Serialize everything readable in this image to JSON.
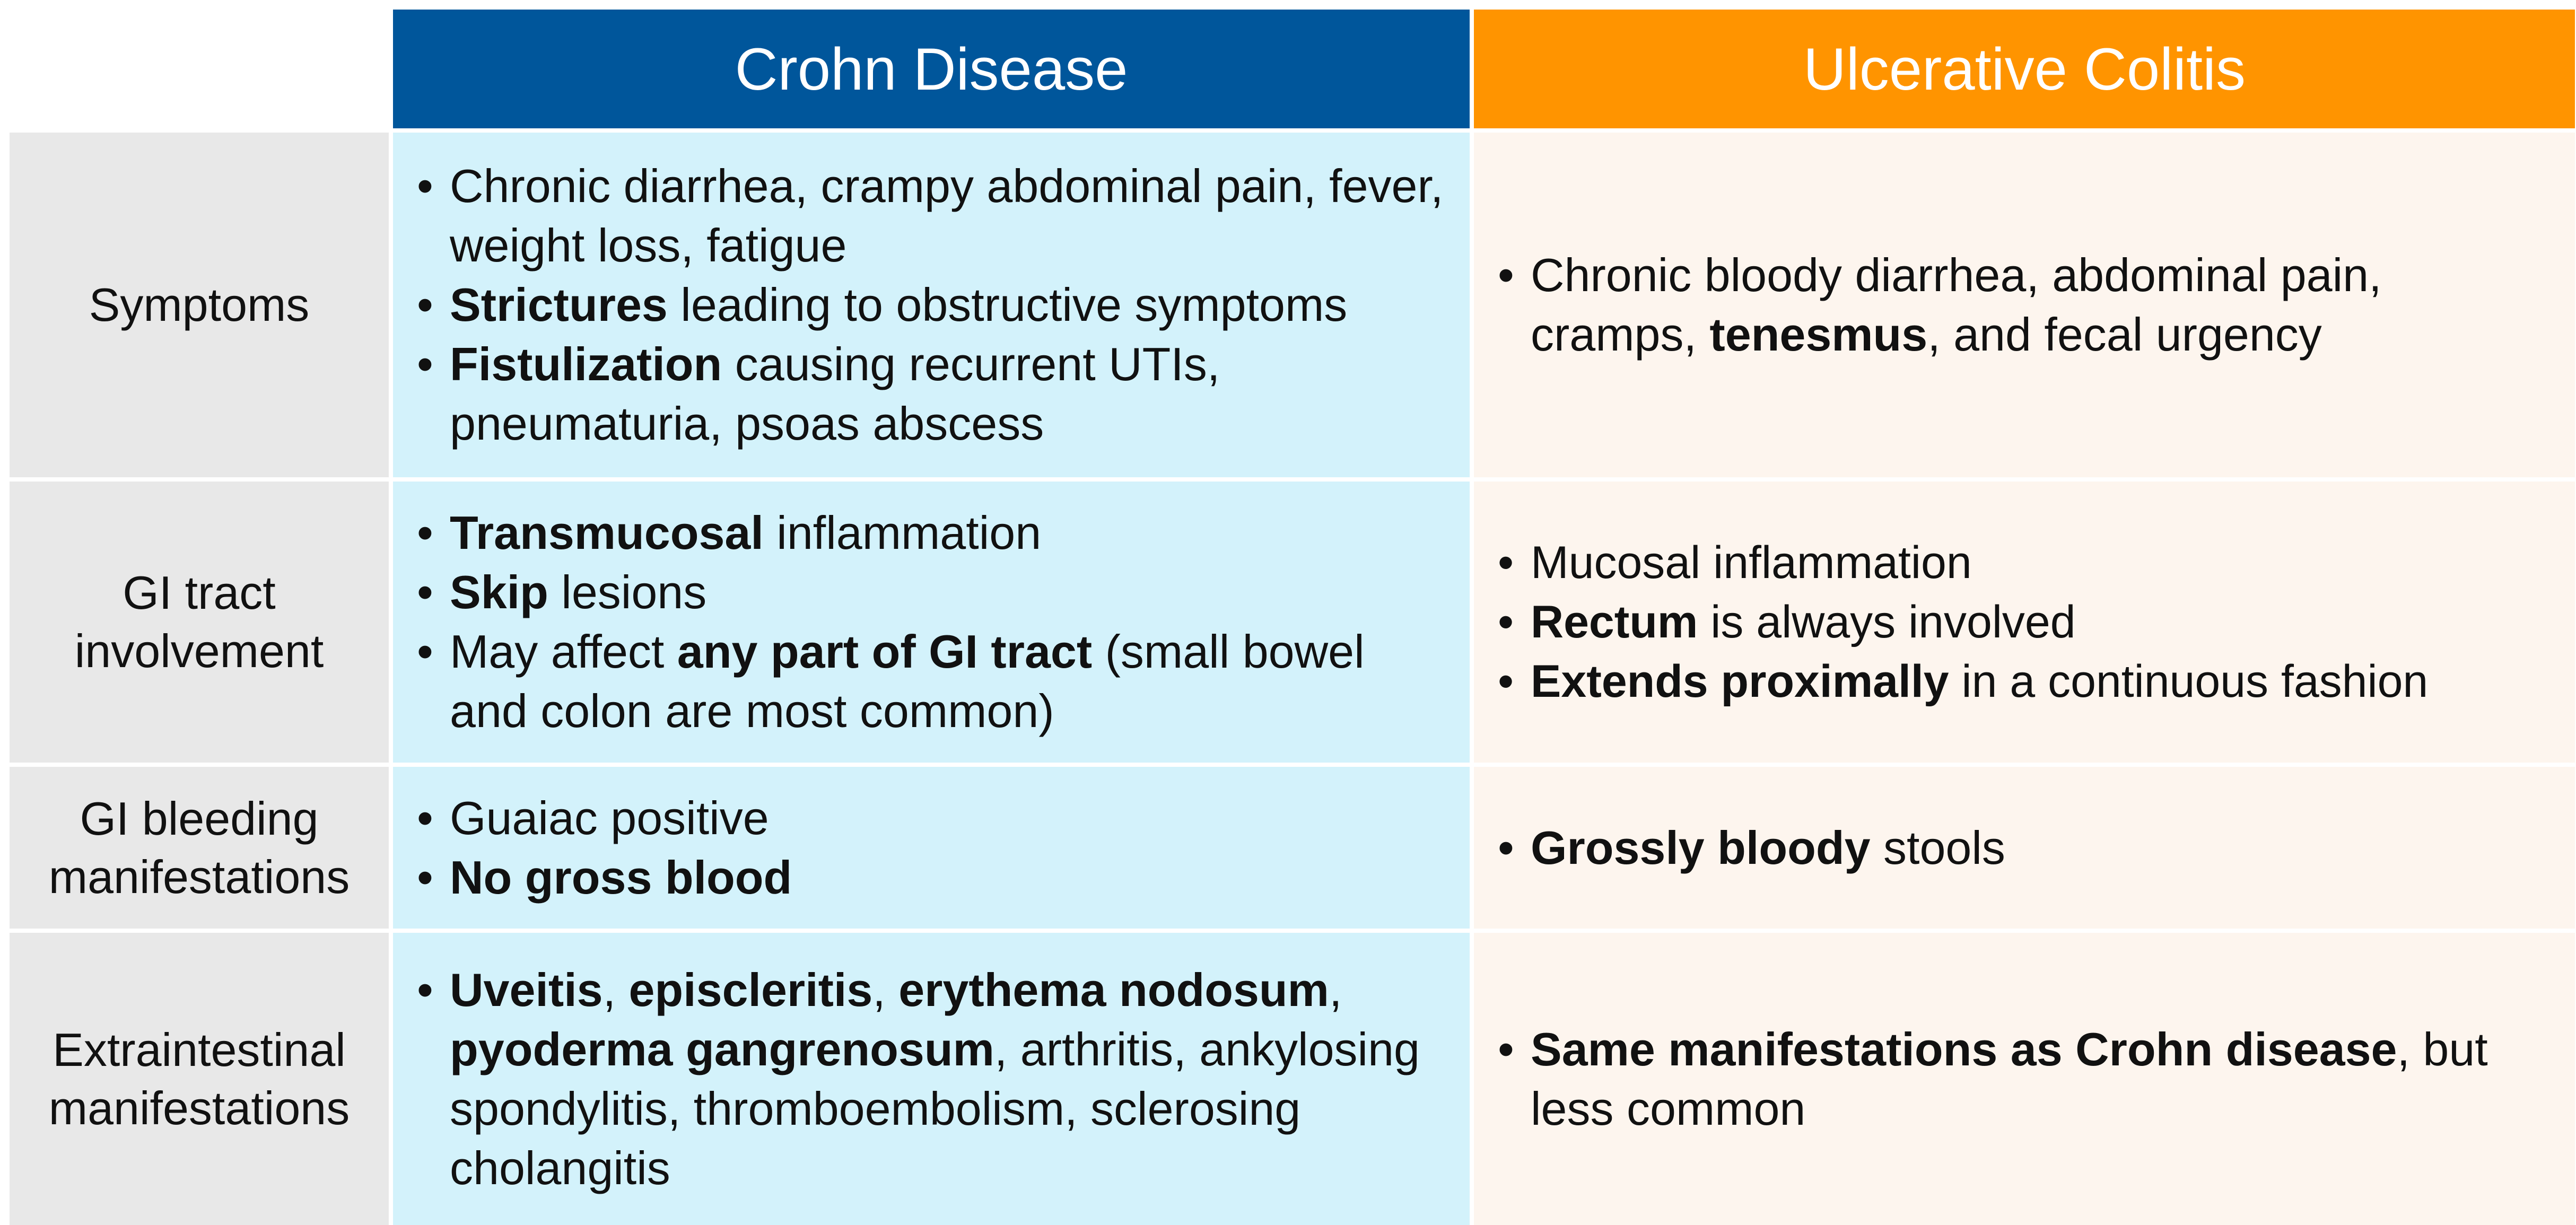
{
  "headers": {
    "crohn": "Crohn Disease",
    "uc": "Ulcerative Colitis"
  },
  "rows": [
    {
      "label": "Symptoms",
      "crohn": [
        [
          {
            "t": "Chronic diarrhea, crampy abdominal pain, fever, weight loss, fatigue"
          }
        ],
        [
          {
            "t": "Strictures",
            "b": true
          },
          {
            "t": " leading to obstructive symptoms"
          }
        ],
        [
          {
            "t": "Fistulization",
            "b": true
          },
          {
            "t": " causing recurrent UTIs, pneumaturia, psoas abscess"
          }
        ]
      ],
      "uc": [
        [
          {
            "t": "Chronic bloody diarrhea, abdominal pain, cramps, "
          },
          {
            "t": "tenesmus",
            "b": true
          },
          {
            "t": ", and fecal urgency"
          }
        ]
      ]
    },
    {
      "label": "GI tract involvement",
      "crohn": [
        [
          {
            "t": "Transmucosal",
            "b": true
          },
          {
            "t": " inflammation"
          }
        ],
        [
          {
            "t": "Skip",
            "b": true
          },
          {
            "t": " lesions"
          }
        ],
        [
          {
            "t": "May affect "
          },
          {
            "t": "any part of GI tract",
            "b": true
          },
          {
            "t": " (small bowel and colon are most common)"
          }
        ]
      ],
      "uc": [
        [
          {
            "t": "Mucosal inflammation"
          }
        ],
        [
          {
            "t": "Rectum",
            "b": true
          },
          {
            "t": " is always involved"
          }
        ],
        [
          {
            "t": "Extends proximally",
            "b": true
          },
          {
            "t": " in a continuous fashion"
          }
        ]
      ]
    },
    {
      "label": "GI bleeding manifestations",
      "crohn": [
        [
          {
            "t": "Guaiac positive"
          }
        ],
        [
          {
            "t": "No gross blood",
            "b": true
          }
        ]
      ],
      "uc": [
        [
          {
            "t": "Grossly bloody",
            "b": true
          },
          {
            "t": " stools"
          }
        ]
      ]
    },
    {
      "label": "Extraintestinal manifestations",
      "crohn": [
        [
          {
            "t": "Uveitis",
            "b": true
          },
          {
            "t": ", "
          },
          {
            "t": "episcleritis",
            "b": true
          },
          {
            "t": ", "
          },
          {
            "t": "erythema nodosum",
            "b": true
          },
          {
            "t": ", "
          },
          {
            "t": "pyoderma gangrenosum",
            "b": true
          },
          {
            "t": ", arthritis, ankylosing spondylitis, thromboembolism, sclerosing cholangitis"
          }
        ]
      ],
      "uc": [
        [
          {
            "t": "Same manifestations as Crohn disease",
            "b": true
          },
          {
            "t": ", but less common"
          }
        ]
      ]
    }
  ]
}
